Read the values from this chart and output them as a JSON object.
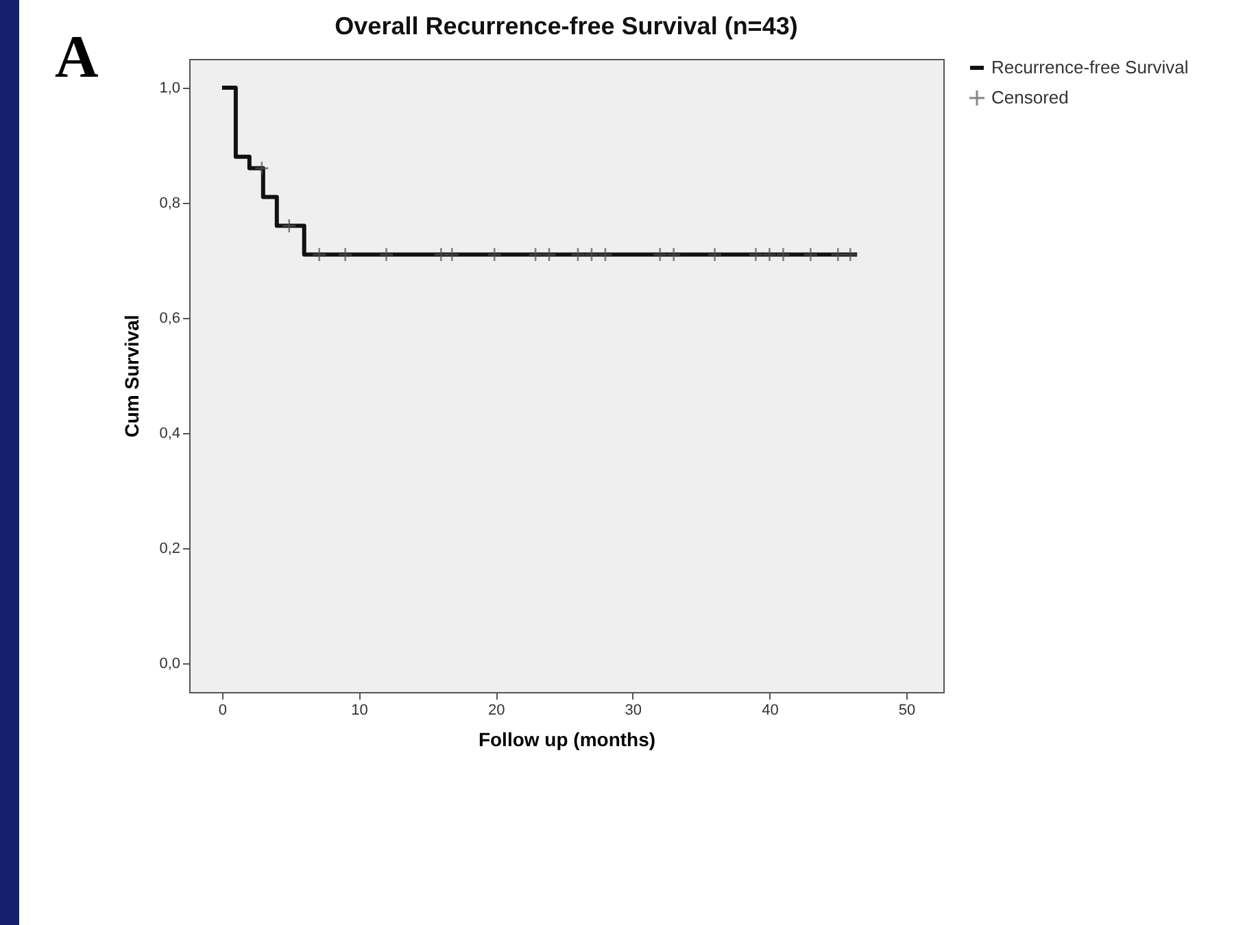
{
  "chart_data": {
    "type": "step",
    "title": "Overall Recurrence-free Survival (n=43)",
    "xlabel": "Follow up (months)",
    "ylabel": "Cum Survival",
    "annotations": [
      "A"
    ],
    "series": [
      {
        "name": "Recurrence-free Survival",
        "color": "#111111",
        "x": [
          0,
          1,
          2,
          3,
          4,
          6,
          46.4
        ],
        "values": [
          1.0,
          0.88,
          0.86,
          0.81,
          0.76,
          0.71,
          0.71
        ]
      },
      {
        "name": "Censored",
        "type": "scatter",
        "marker": "cross",
        "color": "#555555",
        "x": [
          2.9,
          4.9,
          7.1,
          9.0,
          12.0,
          16.0,
          16.8,
          19.9,
          22.9,
          23.9,
          26.0,
          27.0,
          28.0,
          32.0,
          33.0,
          36.0,
          39.0,
          40.0,
          41.0,
          43.0,
          45.0,
          45.9
        ],
        "values": [
          0.86,
          0.76,
          0.71,
          0.71,
          0.71,
          0.71,
          0.71,
          0.71,
          0.71,
          0.71,
          0.71,
          0.71,
          0.71,
          0.71,
          0.71,
          0.71,
          0.71,
          0.71,
          0.71,
          0.71,
          0.71,
          0.71
        ]
      }
    ],
    "line_style": "solid",
    "grid": false,
    "legend": "top right",
    "xlim": [
      -2.4,
      52.7
    ],
    "xticks": [
      0,
      10,
      20,
      30,
      40,
      50
    ],
    "ylim": [
      -0.05,
      1.05
    ],
    "yticks": [
      {
        "value": 0,
        "label": "0,0"
      },
      {
        "value": 0.2,
        "label": "0,2"
      },
      {
        "value": 0.4,
        "label": "0,4"
      },
      {
        "value": 0.6,
        "label": "0,6"
      },
      {
        "value": 0.8,
        "label": "0,8"
      },
      {
        "value": 1,
        "label": "1,0"
      }
    ]
  }
}
